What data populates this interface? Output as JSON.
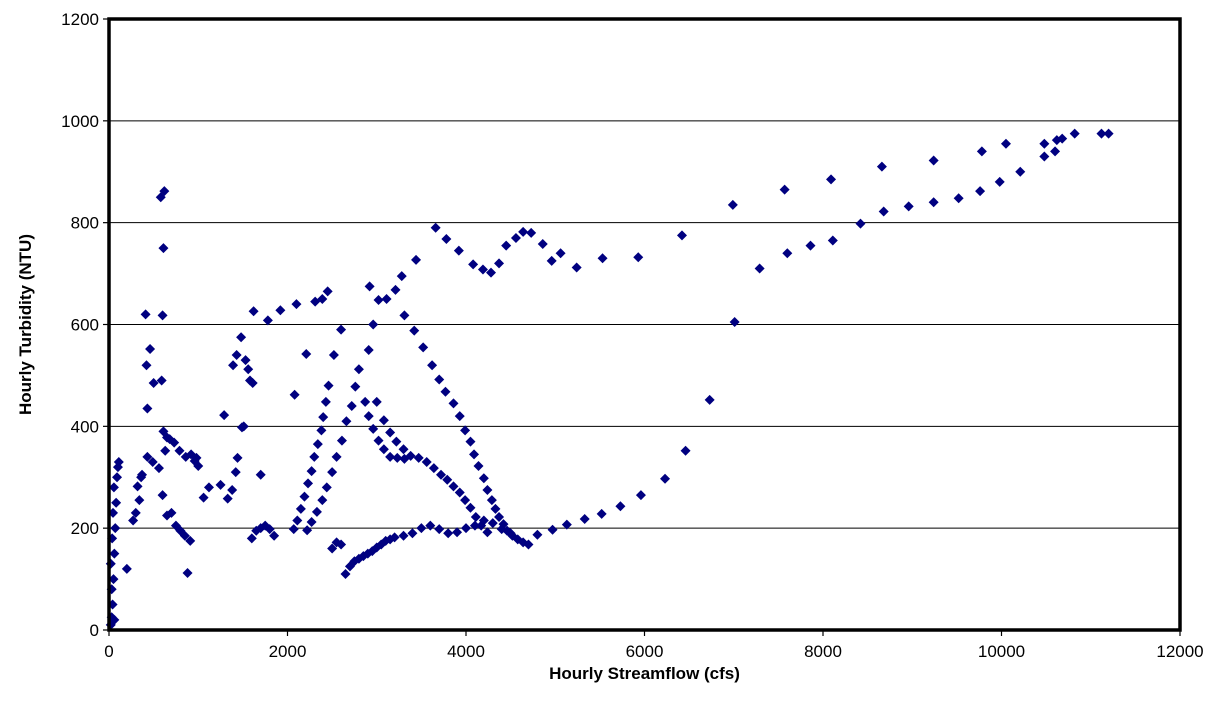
{
  "chart_data": {
    "type": "scatter",
    "title": "",
    "xlabel": "Hourly Streamflow (cfs)",
    "ylabel": "Hourly Turbidity (NTU)",
    "xlim": [
      0,
      12000
    ],
    "ylim": [
      0,
      1200
    ],
    "x_ticks": [
      "0",
      "2000",
      "4000",
      "6000",
      "8000",
      "10000",
      "12000"
    ],
    "y_ticks": [
      "0",
      "200",
      "400",
      "600",
      "800",
      "1000",
      "1200"
    ],
    "grid": "horizontal",
    "legend": "none",
    "marker": "diamond",
    "colors": {
      "marker": "#000080",
      "grid": "#000000",
      "frame": "#000000"
    },
    "series": [
      {
        "values": [
          [
            11200,
            975
          ],
          [
            11120,
            975
          ],
          [
            10820,
            975
          ],
          [
            10680,
            965
          ],
          [
            10620,
            962
          ],
          [
            10480,
            955
          ],
          [
            10050,
            955
          ],
          [
            9780,
            940
          ],
          [
            9240,
            922
          ],
          [
            8660,
            910
          ],
          [
            8090,
            885
          ],
          [
            7570,
            865
          ],
          [
            6990,
            835
          ],
          [
            10600,
            940
          ],
          [
            10480,
            930
          ],
          [
            10210,
            900
          ],
          [
            9980,
            880
          ],
          [
            9760,
            862
          ],
          [
            9520,
            848
          ],
          [
            9240,
            840
          ],
          [
            8960,
            832
          ],
          [
            8680,
            822
          ],
          [
            8420,
            798
          ],
          [
            8110,
            765
          ],
          [
            7860,
            755
          ],
          [
            7600,
            740
          ],
          [
            7290,
            710
          ],
          [
            7010,
            605
          ],
          [
            6730,
            452
          ],
          [
            6460,
            352
          ],
          [
            6230,
            297
          ],
          [
            5960,
            265
          ],
          [
            5730,
            243
          ],
          [
            5520,
            228
          ],
          [
            5330,
            218
          ],
          [
            5130,
            207
          ],
          [
            4970,
            197
          ],
          [
            4800,
            187
          ],
          [
            6420,
            775
          ],
          [
            5930,
            732
          ],
          [
            5530,
            730
          ],
          [
            5240,
            712
          ],
          [
            5060,
            740
          ],
          [
            4960,
            725
          ],
          [
            4860,
            758
          ],
          [
            4730,
            780
          ],
          [
            4640,
            782
          ],
          [
            4560,
            770
          ],
          [
            4450,
            755
          ],
          [
            4370,
            720
          ],
          [
            4280,
            702
          ],
          [
            4190,
            708
          ],
          [
            4080,
            718
          ],
          [
            3920,
            745
          ],
          [
            3780,
            768
          ],
          [
            3660,
            790
          ],
          [
            3440,
            727
          ],
          [
            3280,
            695
          ],
          [
            3210,
            668
          ],
          [
            3110,
            650
          ],
          [
            3020,
            648
          ],
          [
            2920,
            675
          ],
          [
            2450,
            665
          ],
          [
            2390,
            650
          ],
          [
            2310,
            645
          ],
          [
            2100,
            640
          ],
          [
            1920,
            628
          ],
          [
            1780,
            608
          ],
          [
            1620,
            626
          ],
          [
            1480,
            575
          ],
          [
            3310,
            618
          ],
          [
            3420,
            588
          ],
          [
            3520,
            555
          ],
          [
            3620,
            520
          ],
          [
            3700,
            492
          ],
          [
            3770,
            468
          ],
          [
            3860,
            445
          ],
          [
            3930,
            420
          ],
          [
            3990,
            392
          ],
          [
            4050,
            370
          ],
          [
            4090,
            345
          ],
          [
            4140,
            322
          ],
          [
            4200,
            298
          ],
          [
            4240,
            275
          ],
          [
            4290,
            255
          ],
          [
            4330,
            238
          ],
          [
            4370,
            222
          ],
          [
            4420,
            208
          ],
          [
            4460,
            195
          ],
          [
            4520,
            185
          ],
          [
            4580,
            178
          ],
          [
            4640,
            172
          ],
          [
            4700,
            168
          ],
          [
            2960,
            600
          ],
          [
            2910,
            550
          ],
          [
            2800,
            512
          ],
          [
            2760,
            478
          ],
          [
            2720,
            440
          ],
          [
            2660,
            410
          ],
          [
            2610,
            372
          ],
          [
            2550,
            340
          ],
          [
            2500,
            310
          ],
          [
            2440,
            280
          ],
          [
            2390,
            255
          ],
          [
            2330,
            232
          ],
          [
            2270,
            212
          ],
          [
            2220,
            196
          ],
          [
            3000,
            448
          ],
          [
            3080,
            412
          ],
          [
            3150,
            388
          ],
          [
            3220,
            370
          ],
          [
            3300,
            355
          ],
          [
            3380,
            342
          ],
          [
            3470,
            338
          ],
          [
            3560,
            330
          ],
          [
            3640,
            318
          ],
          [
            3720,
            305
          ],
          [
            3790,
            295
          ],
          [
            3860,
            282
          ],
          [
            3930,
            270
          ],
          [
            3990,
            255
          ],
          [
            4050,
            240
          ],
          [
            4110,
            222
          ],
          [
            4170,
            205
          ],
          [
            4240,
            192
          ],
          [
            2870,
            448
          ],
          [
            2910,
            420
          ],
          [
            2960,
            395
          ],
          [
            3020,
            372
          ],
          [
            3080,
            355
          ],
          [
            3150,
            340
          ],
          [
            3230,
            338
          ],
          [
            3310,
            336
          ],
          [
            2600,
            590
          ],
          [
            2520,
            540
          ],
          [
            2460,
            480
          ],
          [
            2430,
            448
          ],
          [
            2400,
            418
          ],
          [
            2380,
            392
          ],
          [
            2340,
            365
          ],
          [
            2300,
            340
          ],
          [
            2270,
            312
          ],
          [
            2230,
            288
          ],
          [
            2190,
            262
          ],
          [
            2150,
            238
          ],
          [
            2110,
            215
          ],
          [
            2070,
            198
          ],
          [
            2080,
            462
          ],
          [
            2210,
            542
          ],
          [
            1700,
            305
          ],
          [
            1530,
            530
          ],
          [
            1560,
            512
          ],
          [
            1580,
            490
          ],
          [
            1610,
            485
          ],
          [
            1510,
            400
          ],
          [
            1490,
            398
          ],
          [
            1440,
            338
          ],
          [
            1420,
            310
          ],
          [
            1380,
            275
          ],
          [
            1330,
            258
          ],
          [
            1290,
            422
          ],
          [
            1390,
            520
          ],
          [
            1430,
            540
          ],
          [
            680,
            375
          ],
          [
            730,
            368
          ],
          [
            790,
            352
          ],
          [
            860,
            340
          ],
          [
            920,
            345
          ],
          [
            960,
            332
          ],
          [
            980,
            338
          ],
          [
            1000,
            322
          ],
          [
            630,
            352
          ],
          [
            600,
            265
          ],
          [
            560,
            318
          ],
          [
            490,
            330
          ],
          [
            430,
            340
          ],
          [
            420,
            520
          ],
          [
            460,
            552
          ],
          [
            500,
            485
          ],
          [
            430,
            435
          ],
          [
            410,
            620
          ],
          [
            600,
            618
          ],
          [
            580,
            850
          ],
          [
            620,
            862
          ],
          [
            610,
            750
          ],
          [
            590,
            490
          ],
          [
            610,
            390
          ],
          [
            650,
            378
          ],
          [
            700,
            230
          ],
          [
            650,
            225
          ],
          [
            750,
            205
          ],
          [
            800,
            195
          ],
          [
            850,
            185
          ],
          [
            910,
            175
          ],
          [
            1120,
            280
          ],
          [
            1250,
            285
          ],
          [
            1060,
            260
          ],
          [
            880,
            112
          ],
          [
            360,
            300
          ],
          [
            370,
            305
          ],
          [
            320,
            282
          ],
          [
            340,
            255
          ],
          [
            300,
            230
          ],
          [
            270,
            215
          ],
          [
            200,
            120
          ],
          [
            2650,
            110
          ],
          [
            2700,
            125
          ],
          [
            2750,
            135
          ],
          [
            2800,
            140
          ],
          [
            2850,
            145
          ],
          [
            2900,
            150
          ],
          [
            2950,
            155
          ],
          [
            3000,
            162
          ],
          [
            3050,
            168
          ],
          [
            3100,
            175
          ],
          [
            3150,
            178
          ],
          [
            3200,
            182
          ],
          [
            3300,
            185
          ],
          [
            3400,
            190
          ],
          [
            3500,
            200
          ],
          [
            3600,
            205
          ],
          [
            3700,
            198
          ],
          [
            3800,
            190
          ],
          [
            3900,
            192
          ],
          [
            4000,
            200
          ],
          [
            4100,
            205
          ],
          [
            4200,
            215
          ],
          [
            4300,
            210
          ],
          [
            4400,
            198
          ],
          [
            4500,
            190
          ],
          [
            1600,
            180
          ],
          [
            1650,
            195
          ],
          [
            1700,
            200
          ],
          [
            1750,
            205
          ],
          [
            1800,
            198
          ],
          [
            1850,
            185
          ],
          [
            2500,
            160
          ],
          [
            2550,
            172
          ],
          [
            2600,
            168
          ],
          [
            20,
            10
          ],
          [
            40,
            50
          ],
          [
            50,
            100
          ],
          [
            60,
            150
          ],
          [
            70,
            200
          ],
          [
            80,
            250
          ],
          [
            90,
            300
          ],
          [
            100,
            320
          ],
          [
            110,
            330
          ],
          [
            30,
            80
          ],
          [
            20,
            130
          ],
          [
            35,
            180
          ],
          [
            45,
            230
          ],
          [
            55,
            280
          ],
          [
            30,
            25
          ],
          [
            60,
            20
          ]
        ]
      }
    ]
  }
}
